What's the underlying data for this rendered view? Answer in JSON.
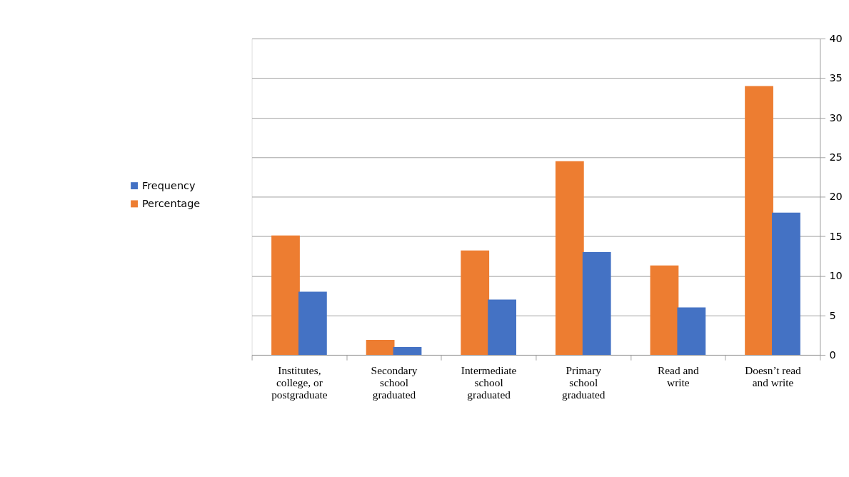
{
  "chart_data": {
    "type": "bar",
    "categories": [
      "Institutes,\ncollege, or\npostgraduate",
      "Secondary\nschool\ngraduated",
      "Intermediate\nschool\ngraduated",
      "Primary\nschool\ngraduated",
      "Read and\nwrite",
      "Doesn’t read\nand write"
    ],
    "series": [
      {
        "name": "Percentage",
        "color": "#ed7d31",
        "values": [
          15.1,
          1.9,
          13.2,
          24.5,
          11.3,
          34.0
        ]
      },
      {
        "name": "Frequency",
        "color": "#4472c4",
        "values": [
          8,
          1,
          7,
          13,
          6,
          18
        ]
      }
    ],
    "ylim": [
      0,
      40
    ],
    "yticks": [
      0,
      5,
      10,
      15,
      20,
      25,
      30,
      35,
      40
    ],
    "grid": "y",
    "legend": "left"
  }
}
